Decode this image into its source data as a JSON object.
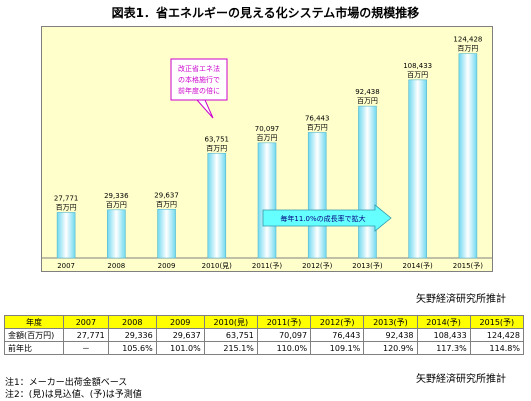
{
  "title": "図表1．省エネルギーの見える化システム市場の規模推移",
  "credit": "矢野経済研究所推計",
  "chart_data": {
    "type": "bar",
    "title": "図表1．省エネルギーの見える化システム市場の規模推移",
    "categories": [
      "2007",
      "2008",
      "2009",
      "2010(見)",
      "2011(予)",
      "2012(予)",
      "2013(予)",
      "2014(予)",
      "2015(予)"
    ],
    "values": [
      27771,
      29336,
      29637,
      63751,
      70097,
      76443,
      92438,
      108433,
      124428
    ],
    "value_labels": [
      "27,771",
      "29,336",
      "29,637",
      "63,751",
      "70,097",
      "76,443",
      "92,438",
      "108,433",
      "124,428"
    ],
    "unit_label": "百万円",
    "ylim": [
      0,
      140000
    ],
    "grid": false,
    "colors": {
      "bar_main": "#6fd9f0",
      "bar_highlight": "#ffffff",
      "plot_bg": "#ffffcc",
      "border": "#808080"
    },
    "annotations": [
      {
        "text_lines": [
          "改正省エネ法",
          "の本格施行で",
          "前年度の倍に"
        ],
        "border_color": "#cc00cc"
      },
      {
        "text": "毎年11.0%の成長率で拡大",
        "color": "#000080",
        "fill": "#66ffff"
      }
    ]
  },
  "table": {
    "headers": [
      "年度",
      "2007",
      "2008",
      "2009",
      "2010(見)",
      "2011(予)",
      "2012(予)",
      "2013(予)",
      "2014(予)",
      "2015(予)"
    ],
    "rows": [
      {
        "label": "金額(百万円)",
        "cells": [
          "27,771",
          "29,336",
          "29,637",
          "63,751",
          "70,097",
          "76,443",
          "92,438",
          "108,433",
          "124,428"
        ]
      },
      {
        "label": "前年比",
        "cells": [
          "－",
          "105.6%",
          "101.0%",
          "215.1%",
          "110.0%",
          "109.1%",
          "120.9%",
          "117.3%",
          "114.8%"
        ]
      }
    ]
  },
  "notes": [
    "注1：メーカー出荷金額ベース",
    "注2：(見)は見込値、(予)は予測値"
  ]
}
